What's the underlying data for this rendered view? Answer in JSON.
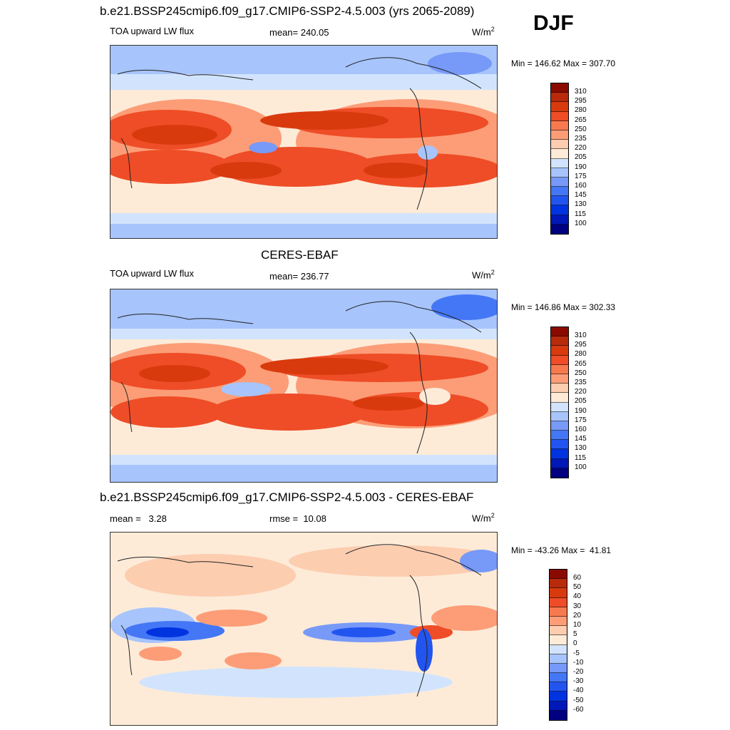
{
  "season": "DJF",
  "colors": {
    "abs_scale": [
      "#000080",
      "#0018b8",
      "#0033e0",
      "#2255f0",
      "#4477f5",
      "#7799f8",
      "#a7c4fc",
      "#d2e4fd",
      "#fdebd8",
      "#fdcdb0",
      "#fc9d77",
      "#f77a4f",
      "#ee4d27",
      "#d93a0d",
      "#b82a0a",
      "#8b0a00"
    ],
    "diff_scale": [
      "#000080",
      "#0018b8",
      "#0033e0",
      "#2255f0",
      "#4477f5",
      "#7799f8",
      "#a7c4fc",
      "#d2e4fd",
      "#ffffff",
      "#fdebd8",
      "#fdcdb0",
      "#fc9d77",
      "#f77a4f",
      "#ee4d27",
      "#d93a0d",
      "#b82a0a",
      "#8b0a00"
    ]
  },
  "panels": [
    {
      "header": "b.e21.BSSP245cmip6.f09_g17.CMIP6-SSP2-4.5.003 (yrs 2065-2089)",
      "left_label": "TOA upward LW flux",
      "center_label": "mean= 240.05",
      "units": "W/m",
      "units_sup": "2",
      "minmax": "Min = 146.62 Max = 307.70",
      "colorbar_ticks": [
        "310",
        "295",
        "280",
        "265",
        "250",
        "235",
        "220",
        "205",
        "190",
        "175",
        "160",
        "145",
        "130",
        "115",
        "100"
      ]
    },
    {
      "header": "CERES-EBAF",
      "left_label": "TOA upward LW flux",
      "center_label": "mean= 236.77",
      "units": "W/m",
      "units_sup": "2",
      "minmax": "Min = 146.86 Max = 302.33",
      "colorbar_ticks": [
        "310",
        "295",
        "280",
        "265",
        "250",
        "235",
        "220",
        "205",
        "190",
        "175",
        "160",
        "145",
        "130",
        "115",
        "100"
      ]
    },
    {
      "header": "b.e21.BSSP245cmip6.f09_g17.CMIP6-SSP2-4.5.003 - CERES-EBAF",
      "left_label": "mean =   3.28",
      "center_label": "rmse =  10.08",
      "units": "W/m",
      "units_sup": "2",
      "minmax": "Min = -43.26 Max =  41.81",
      "colorbar_ticks": [
        "60",
        "50",
        "40",
        "30",
        "20",
        "10",
        "5",
        "0",
        "-5",
        "-10",
        "-20",
        "-30",
        "-40",
        "-50",
        "-60"
      ]
    }
  ]
}
